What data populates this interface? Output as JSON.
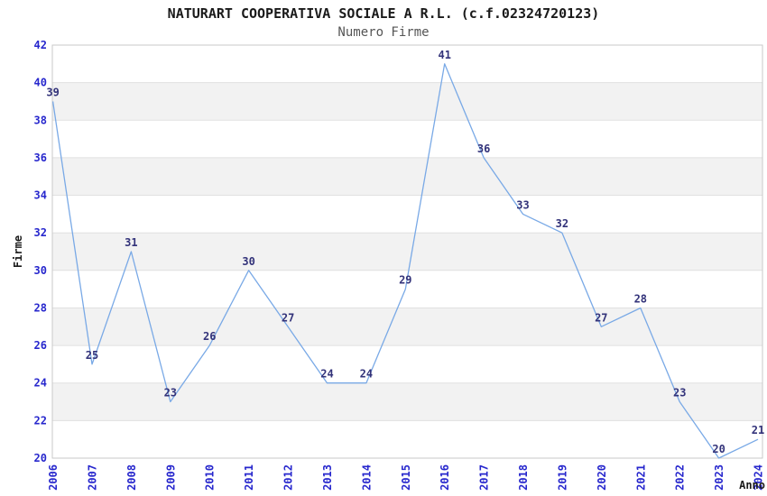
{
  "chart_data": {
    "type": "line",
    "title": "NATURART COOPERATIVA SOCIALE A R.L. (c.f.02324720123)",
    "subtitle": "Numero Firme",
    "xlabel": "Anno",
    "ylabel": "Firme",
    "categories": [
      "2006",
      "2007",
      "2008",
      "2009",
      "2010",
      "2011",
      "2012",
      "2013",
      "2014",
      "2015",
      "2016",
      "2017",
      "2018",
      "2019",
      "2020",
      "2021",
      "2022",
      "2023",
      "2024"
    ],
    "values": [
      39,
      25,
      31,
      23,
      26,
      30,
      27,
      24,
      24,
      29,
      41,
      36,
      33,
      32,
      27,
      28,
      23,
      20,
      21
    ],
    "ylim": [
      20,
      42
    ],
    "ytick_step": 2,
    "grid": "horizontal",
    "bands": "alternating-2-unit",
    "legend": "none",
    "markers": "none",
    "colors": {
      "line": "#79a9e6",
      "data_label": "#33337a",
      "tick_label": "#2727cd",
      "band": "#f2f2f2",
      "gridline": "#e0e0e0",
      "border": "#c9c9c9",
      "axis_label": "#1a1a1a",
      "title": "#1a1a1a",
      "subtitle": "#555555",
      "background": "#ffffff"
    }
  }
}
